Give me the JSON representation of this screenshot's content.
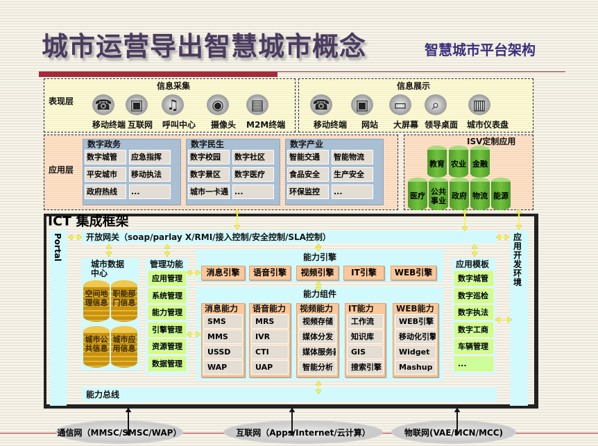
{
  "header": {
    "title": "城市运营导出智慧城市概念",
    "subtitle": "智慧城市平台架构"
  },
  "presentation": {
    "layer_label": "表现层",
    "collect": {
      "title": "信息采集",
      "items": [
        {
          "label": "移动终端",
          "icon": "mobile-phone-icon"
        },
        {
          "label": "互联网",
          "icon": "computer-icon"
        },
        {
          "label": "呼叫中心",
          "icon": "headset-icon"
        },
        {
          "label": "摄像头",
          "icon": "camera-icon"
        },
        {
          "label": "M2M终端",
          "icon": "m2m-device-icon"
        }
      ]
    },
    "display": {
      "title": "信息展示",
      "items": [
        {
          "label": "移动终端",
          "icon": "mobile-phone-icon"
        },
        {
          "label": "网站",
          "icon": "computer-icon"
        },
        {
          "label": "大屏幕",
          "icon": "monitor-icon"
        },
        {
          "label": "领导桌面",
          "icon": "globe-search-icon"
        },
        {
          "label": "城市仪表盘",
          "icon": "bar-chart-icon"
        }
      ]
    }
  },
  "application": {
    "layer_label": "应用层",
    "groups": [
      {
        "title": "数字政务",
        "items": [
          "数字城管",
          "应急指挥",
          "平安城市",
          "移动执法",
          "政府热线",
          "..."
        ]
      },
      {
        "title": "数字民生",
        "items": [
          "数字校园",
          "数字社区",
          "数字景区",
          "数字医疗",
          "城市一卡通",
          "..."
        ]
      },
      {
        "title": "数字产业",
        "items": [
          "智能交通",
          "智能物流",
          "食品安全",
          "生产安全",
          "环保监控",
          "..."
        ]
      }
    ],
    "isv": {
      "title": "ISV定制应用",
      "top": [
        "教育",
        "农业",
        "金融"
      ],
      "bottom": [
        "医疗",
        "公共事业",
        "政府",
        "物流",
        "能源"
      ]
    }
  },
  "ict": {
    "title": "ICT 集成框架",
    "portal": "Portal",
    "gateway": "开放网关（soap/parlay X/RMI/接入控制/安全控制/SLA控制）",
    "dev_env": "应用开发环境",
    "data_center": {
      "title": "城市数据中心",
      "stores": [
        "空间地理信息",
        "职能部门信息",
        "城市公共信息",
        "城市应用信息"
      ]
    },
    "management": {
      "title": "管理功能",
      "items": [
        "应用管理",
        "系统管理",
        "能力管理",
        "引擎管理",
        "资源管理",
        "数据管理"
      ]
    },
    "engine": {
      "title": "能力引擎",
      "items": [
        "消息引擎",
        "语音引擎",
        "视频引擎",
        "IT引擎",
        "WEB引擎"
      ]
    },
    "components": {
      "title": "能力组件",
      "groups": [
        {
          "title": "消息能力",
          "items": [
            "SMS",
            "MMS",
            "USSD",
            "WAP"
          ]
        },
        {
          "title": "语音能力",
          "items": [
            "MRS",
            "IVR",
            "CTI",
            "UAP"
          ]
        },
        {
          "title": "视频能力",
          "items": [
            "视频存储",
            "媒体分发",
            "媒体服务器",
            "智能分析"
          ]
        },
        {
          "title": "IT能力",
          "items": [
            "工作流",
            "知识库",
            "GIS",
            "搜索引擎"
          ]
        },
        {
          "title": "WEB能力",
          "items": [
            "WEB引擎",
            "移动化引擎",
            "Widget",
            "Mashup"
          ]
        }
      ]
    },
    "templates": {
      "title": "应用模板",
      "items": [
        "数字城管",
        "数字巡检",
        "数字执法",
        "数字工商",
        "车辆管理",
        "..."
      ]
    },
    "bus": "能力总线"
  },
  "networks": [
    "通信网（MMSC/SMSC/WAP）",
    "互联网（Apps/Internet/云计算）",
    "物联网(VAE/MCN/MCC)"
  ],
  "colors": {
    "title": "#4b3b5f",
    "accent_red": "#a52a3a",
    "engine_orange": "#fbc89b",
    "template_green": "#ccff99",
    "panel_cyan": "#d2fafd",
    "isv_green": "#72c23c",
    "arrow_yellow": "#f5f55a"
  }
}
